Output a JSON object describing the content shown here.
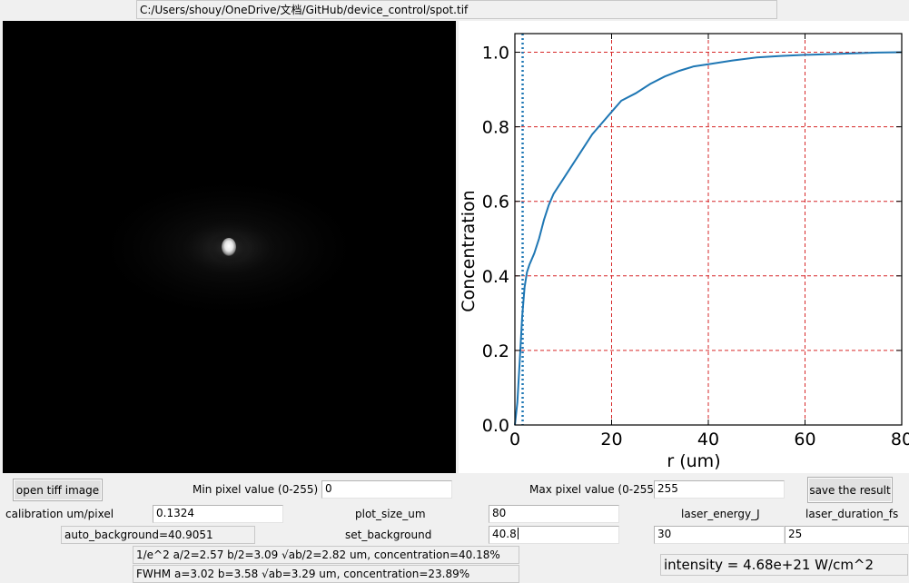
{
  "file_path": "C:/Users/shouy/OneDrive/文档/GitHub/device_control/spot.tif",
  "controls": {
    "open_button": "open tiff image",
    "min_pixel_label": "Min pixel value (0-255)",
    "min_pixel_value": "0",
    "max_pixel_label": "Max pixel value (0-255)",
    "max_pixel_value": "255",
    "save_button": "save the result",
    "calibration_label": "calibration um/pixel",
    "calibration_value": "0.1324",
    "plot_size_label": "plot_size_um",
    "plot_size_value": "80",
    "laser_energy_label": "laser_energy_J",
    "laser_duration_label": "laser_duration_fs",
    "auto_background": "auto_background=40.9051",
    "set_background_label": "set_background",
    "set_background_value": "40.8",
    "laser_energy_value": "30",
    "laser_duration_value": "25"
  },
  "results": {
    "e2_line": "1/e^2 a/2=2.57 b/2=3.09 √ab/2=2.82 um, concentration=40.18%",
    "fwhm_line": "FWHM a=3.02 b=3.58 √ab=3.29 um, concentration=23.89%",
    "intensity": "intensity = 4.68e+21 W/cm^2"
  },
  "colors": {
    "curve": "#1f77b4",
    "grid": "#d62728",
    "marker_line": "#1f77b4",
    "image_background": "#000000"
  },
  "chart_data": {
    "type": "line",
    "title": "",
    "xlabel": "r (um)",
    "ylabel": "Concentration",
    "xlim": [
      0,
      80
    ],
    "ylim": [
      0,
      1.05
    ],
    "x_ticks": [
      0,
      20,
      40,
      60,
      80
    ],
    "y_ticks": [
      0.0,
      0.2,
      0.4,
      0.6,
      0.8,
      1.0
    ],
    "x_tick_labels": [
      "0",
      "20",
      "40",
      "60",
      "80"
    ],
    "y_tick_labels": [
      "0.0",
      "0.2",
      "0.4",
      "0.6",
      "0.8",
      "1.0"
    ],
    "grid": true,
    "grid_style": "dashed",
    "vertical_marker_x": 1.6,
    "series": [
      {
        "x": [
          0,
          0.5,
          1,
          1.5,
          2,
          2.5,
          3,
          4,
          5,
          6,
          7,
          8,
          10,
          12,
          14,
          16,
          18,
          20,
          22,
          25,
          28,
          31,
          34,
          37,
          40,
          45,
          50,
          55,
          60,
          65,
          70,
          75,
          80
        ],
        "values": [
          0,
          0.06,
          0.17,
          0.29,
          0.37,
          0.41,
          0.43,
          0.46,
          0.5,
          0.55,
          0.59,
          0.62,
          0.66,
          0.7,
          0.74,
          0.78,
          0.81,
          0.84,
          0.87,
          0.89,
          0.915,
          0.935,
          0.95,
          0.962,
          0.968,
          0.978,
          0.986,
          0.99,
          0.993,
          0.995,
          0.997,
          0.999,
          1.0
        ]
      }
    ]
  }
}
